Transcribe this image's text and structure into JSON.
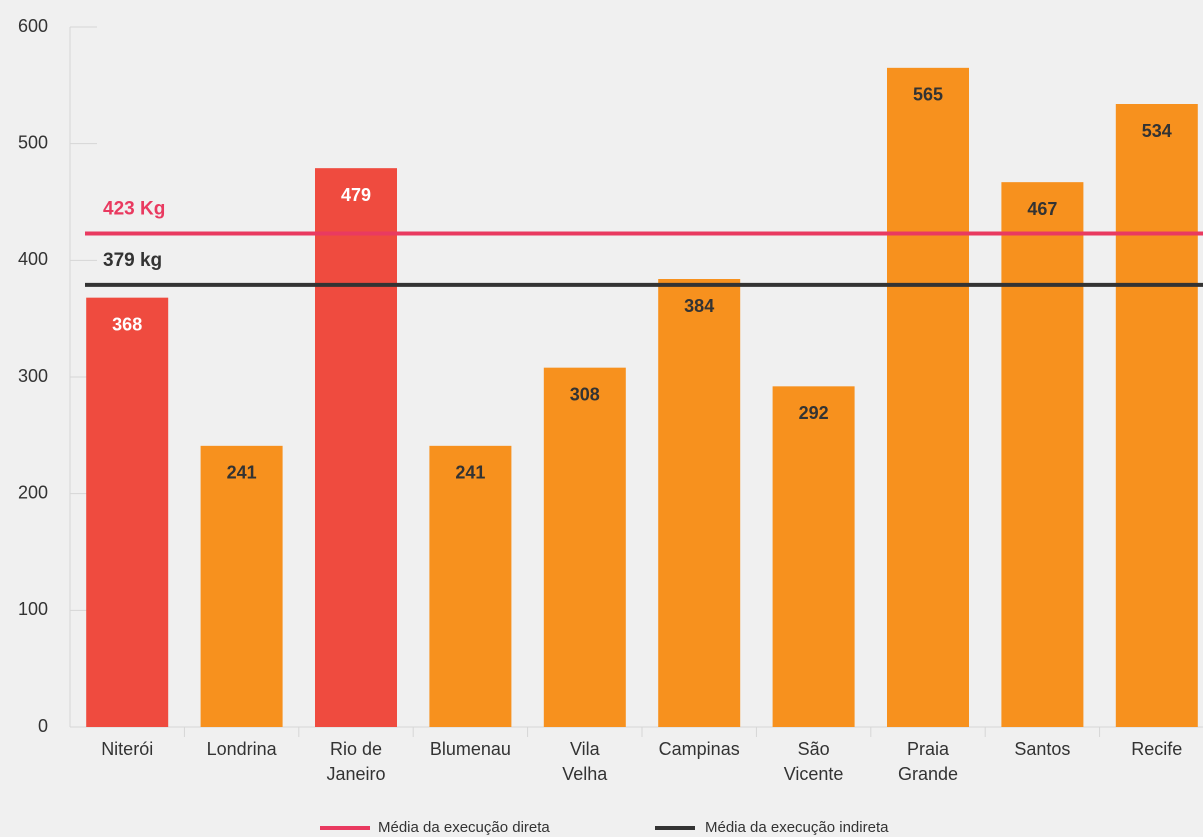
{
  "chart_data": {
    "type": "bar",
    "categories": [
      "Niterói",
      "Londrina",
      "Rio de Janeiro",
      "Blumenau",
      "Vila Velha",
      "Campinas",
      "São Vicente",
      "Praia Grande",
      "Santos",
      "Recife"
    ],
    "values": [
      368,
      241,
      479,
      241,
      308,
      384,
      292,
      565,
      467,
      534
    ],
    "colors": [
      "#ef4b3f",
      "#f7911e",
      "#ef4b3f",
      "#f7911e",
      "#f7911e",
      "#f7911e",
      "#f7911e",
      "#f7911e",
      "#f7911e",
      "#f7911e"
    ],
    "ylim": [
      0,
      600
    ],
    "yticks": [
      0,
      100,
      200,
      300,
      400,
      500,
      600
    ],
    "lines": [
      {
        "name": "Média da execução direta",
        "value": 423,
        "label": "423 Kg",
        "color": "#e93a60"
      },
      {
        "name": "Média da execução indireta",
        "value": 379,
        "label": "379 kg",
        "color": "#333333"
      }
    ]
  }
}
